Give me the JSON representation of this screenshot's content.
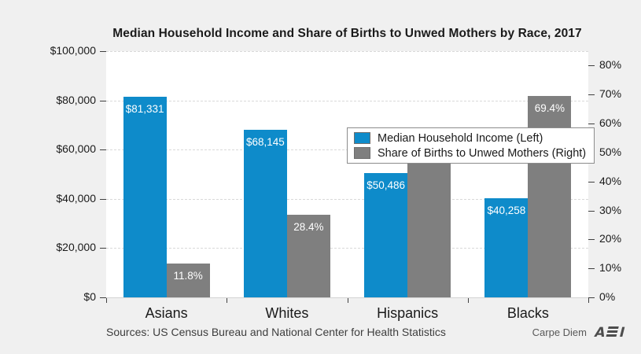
{
  "chart_data": {
    "type": "bar",
    "title": "Median Household Income and Share of Births to Unwed Mothers by Race, 2017",
    "categories": [
      "Asians",
      "Whites",
      "Hispanics",
      "Blacks"
    ],
    "series": [
      {
        "name": "Median Household Income (Left)",
        "axis": "left",
        "color": "#0e8bca",
        "values": [
          81331,
          68145,
          50486,
          40258
        ],
        "labels": [
          "$81,331",
          "$68,145",
          "$50,486",
          "$40,258"
        ]
      },
      {
        "name": "Share of Births to Unwed Mothers (Right)",
        "axis": "right",
        "color": "#7f7f7f",
        "values": [
          11.8,
          28.4,
          52.1,
          69.4
        ],
        "labels": [
          "11.8%",
          "28.4%",
          "52.1%",
          "69.4%"
        ]
      }
    ],
    "left_axis": {
      "min": 0,
      "max": 100000,
      "ticks": [
        {
          "value": 0,
          "label": "$0"
        },
        {
          "value": 20000,
          "label": "$20,000"
        },
        {
          "value": 40000,
          "label": "$40,000"
        },
        {
          "value": 60000,
          "label": "$60,000"
        },
        {
          "value": 80000,
          "label": "$80,000"
        },
        {
          "value": 100000,
          "label": "$100,000"
        }
      ]
    },
    "right_axis": {
      "min": 0,
      "max": 85,
      "ticks": [
        {
          "value": 0,
          "label": "0%"
        },
        {
          "value": 10,
          "label": "10%"
        },
        {
          "value": 20,
          "label": "20%"
        },
        {
          "value": 30,
          "label": "30%"
        },
        {
          "value": 40,
          "label": "40%"
        },
        {
          "value": 50,
          "label": "50%"
        },
        {
          "value": 60,
          "label": "60%"
        },
        {
          "value": 70,
          "label": "70%"
        },
        {
          "value": 80,
          "label": "80%"
        }
      ]
    },
    "grid": "horizontal-dashed",
    "legend_position": "top-center"
  },
  "footer": {
    "sources": "Sources: US Census Bureau and National Center for Health Statistics",
    "brand_text": "Carpe Diem",
    "logo_text": "AEI"
  },
  "colors": {
    "background": "#f0f0f0",
    "plot_background": "#ffffff",
    "gridline": "#d9d9d9",
    "tick": "#404040",
    "text": "#1a1a1a",
    "bar_label": "#ffffff",
    "income_bar": "#0e8bca",
    "births_bar": "#7f7f7f",
    "source_text": "#3d3d3d",
    "brand_text": "#595959",
    "logo": "#4d4d4d",
    "legend_border": "#8c8c8c"
  }
}
